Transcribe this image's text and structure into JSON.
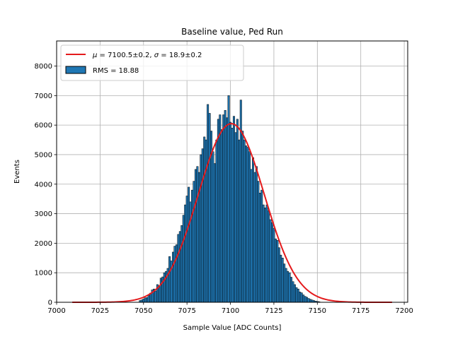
{
  "chart_data": {
    "type": "bar",
    "title": "Baseline value, Ped Run",
    "xlabel": "Sample Value [ADC Counts]",
    "ylabel": "Events",
    "xlim": [
      7000,
      7202
    ],
    "ylim": [
      0,
      8850
    ],
    "xticks": [
      7000,
      7025,
      7050,
      7075,
      7100,
      7125,
      7150,
      7175,
      7200
    ],
    "yticks": [
      0,
      1000,
      2000,
      3000,
      4000,
      5000,
      6000,
      7000,
      8000
    ],
    "grid": true,
    "legend_position": "top-left",
    "colors": {
      "bars": "#1f77b4",
      "fit": "#e41a1c",
      "edge": "#000000",
      "grid": "#b0b0b0"
    },
    "histogram": {
      "name": "RMS = 18.88",
      "bin_width": 1,
      "bins": [
        {
          "x": 7048,
          "y": 60
        },
        {
          "x": 7049,
          "y": 80
        },
        {
          "x": 7050,
          "y": 110
        },
        {
          "x": 7051,
          "y": 150
        },
        {
          "x": 7052,
          "y": 160
        },
        {
          "x": 7053,
          "y": 230
        },
        {
          "x": 7054,
          "y": 310
        },
        {
          "x": 7055,
          "y": 420
        },
        {
          "x": 7056,
          "y": 450
        },
        {
          "x": 7057,
          "y": 380
        },
        {
          "x": 7058,
          "y": 600
        },
        {
          "x": 7059,
          "y": 560
        },
        {
          "x": 7060,
          "y": 820
        },
        {
          "x": 7061,
          "y": 860
        },
        {
          "x": 7062,
          "y": 1000
        },
        {
          "x": 7063,
          "y": 1050
        },
        {
          "x": 7064,
          "y": 1150
        },
        {
          "x": 7065,
          "y": 1550
        },
        {
          "x": 7066,
          "y": 1400
        },
        {
          "x": 7067,
          "y": 1700
        },
        {
          "x": 7068,
          "y": 1900
        },
        {
          "x": 7069,
          "y": 1950
        },
        {
          "x": 7070,
          "y": 2300
        },
        {
          "x": 7071,
          "y": 2400
        },
        {
          "x": 7072,
          "y": 2600
        },
        {
          "x": 7073,
          "y": 2950
        },
        {
          "x": 7074,
          "y": 3300
        },
        {
          "x": 7075,
          "y": 3600
        },
        {
          "x": 7076,
          "y": 3900
        },
        {
          "x": 7077,
          "y": 3400
        },
        {
          "x": 7078,
          "y": 3800
        },
        {
          "x": 7079,
          "y": 4100
        },
        {
          "x": 7080,
          "y": 4500
        },
        {
          "x": 7081,
          "y": 4600
        },
        {
          "x": 7082,
          "y": 4400
        },
        {
          "x": 7083,
          "y": 5000
        },
        {
          "x": 7084,
          "y": 5200
        },
        {
          "x": 7085,
          "y": 5600
        },
        {
          "x": 7086,
          "y": 5500
        },
        {
          "x": 7087,
          "y": 6700
        },
        {
          "x": 7088,
          "y": 6400
        },
        {
          "x": 7089,
          "y": 5800
        },
        {
          "x": 7090,
          "y": 5100
        },
        {
          "x": 7091,
          "y": 4700
        },
        {
          "x": 7092,
          "y": 5500
        },
        {
          "x": 7093,
          "y": 6200
        },
        {
          "x": 7094,
          "y": 6350
        },
        {
          "x": 7095,
          "y": 5850
        },
        {
          "x": 7096,
          "y": 6350
        },
        {
          "x": 7097,
          "y": 6500
        },
        {
          "x": 7098,
          "y": 6250
        },
        {
          "x": 7099,
          "y": 7000
        },
        {
          "x": 7100,
          "y": 6100
        },
        {
          "x": 7101,
          "y": 5900
        },
        {
          "x": 7102,
          "y": 6300
        },
        {
          "x": 7103,
          "y": 5750
        },
        {
          "x": 7104,
          "y": 6200
        },
        {
          "x": 7105,
          "y": 5500
        },
        {
          "x": 7106,
          "y": 6850
        },
        {
          "x": 7107,
          "y": 5800
        },
        {
          "x": 7108,
          "y": 5500
        },
        {
          "x": 7109,
          "y": 5300
        },
        {
          "x": 7110,
          "y": 5250
        },
        {
          "x": 7111,
          "y": 5100
        },
        {
          "x": 7112,
          "y": 4500
        },
        {
          "x": 7113,
          "y": 4900
        },
        {
          "x": 7114,
          "y": 4400
        },
        {
          "x": 7115,
          "y": 4600
        },
        {
          "x": 7116,
          "y": 4100
        },
        {
          "x": 7117,
          "y": 3700
        },
        {
          "x": 7118,
          "y": 3800
        },
        {
          "x": 7119,
          "y": 3300
        },
        {
          "x": 7120,
          "y": 3200
        },
        {
          "x": 7121,
          "y": 3300
        },
        {
          "x": 7122,
          "y": 3100
        },
        {
          "x": 7123,
          "y": 2800
        },
        {
          "x": 7124,
          "y": 2700
        },
        {
          "x": 7125,
          "y": 2500
        },
        {
          "x": 7126,
          "y": 2150
        },
        {
          "x": 7127,
          "y": 2100
        },
        {
          "x": 7128,
          "y": 1850
        },
        {
          "x": 7129,
          "y": 1600
        },
        {
          "x": 7130,
          "y": 1500
        },
        {
          "x": 7131,
          "y": 1300
        },
        {
          "x": 7132,
          "y": 1150
        },
        {
          "x": 7133,
          "y": 1050
        },
        {
          "x": 7134,
          "y": 1000
        },
        {
          "x": 7135,
          "y": 850
        },
        {
          "x": 7136,
          "y": 700
        },
        {
          "x": 7137,
          "y": 600
        },
        {
          "x": 7138,
          "y": 500
        },
        {
          "x": 7139,
          "y": 450
        },
        {
          "x": 7140,
          "y": 350
        },
        {
          "x": 7141,
          "y": 320
        },
        {
          "x": 7142,
          "y": 250
        },
        {
          "x": 7143,
          "y": 200
        },
        {
          "x": 7144,
          "y": 170
        },
        {
          "x": 7145,
          "y": 130
        },
        {
          "x": 7146,
          "y": 100
        },
        {
          "x": 7147,
          "y": 80
        },
        {
          "x": 7148,
          "y": 60
        },
        {
          "x": 7149,
          "y": 40
        },
        {
          "x": 7150,
          "y": 30
        },
        {
          "x": 7151,
          "y": 20
        }
      ]
    },
    "fit": {
      "name_mu_symbol": "μ",
      "name_mu_value": " = 7100.5±0.2, ",
      "name_sigma_symbol": "σ",
      "name_sigma_value": " = 18.9±0.2",
      "mu": 7100.5,
      "sigma": 18.9,
      "amplitude": 6050,
      "x_range": [
        7009,
        7193
      ]
    }
  }
}
